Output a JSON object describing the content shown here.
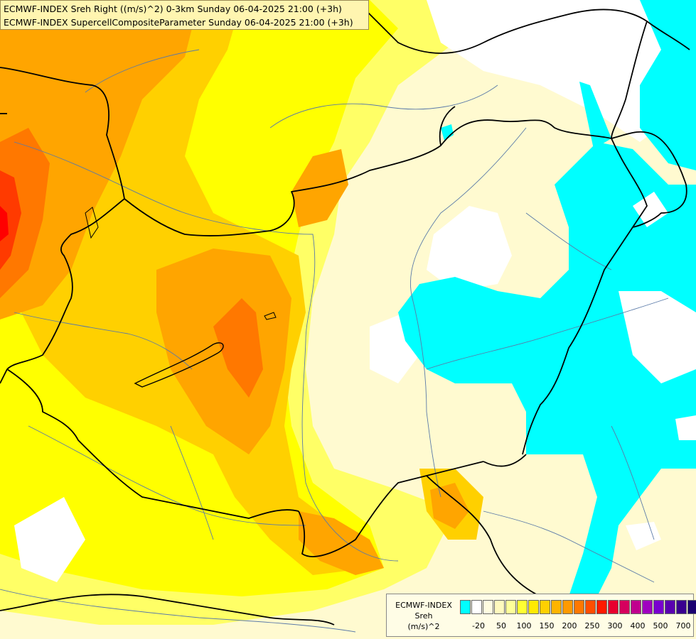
{
  "title": {
    "line1": "ECMWF-INDEX Sreh Right ((m/s)^2) 0-3km Sunday 06-04-2025 21:00 (+3h)",
    "line2": "ECMWF-INDEX SupercellCompositeParameter Sunday 06-04-2025 21:00 (+3h)"
  },
  "legend": {
    "model": "ECMWF-INDEX",
    "param": "Sreh",
    "unit": "(m/s)^2",
    "colors": [
      "#00ffff",
      "#ffffff",
      "#fffde0",
      "#fffabe",
      "#ffff99",
      "#ffff33",
      "#ffea00",
      "#ffd000",
      "#ffb400",
      "#ff9a00",
      "#ff7800",
      "#ff4e00",
      "#ff1a00",
      "#e8002e",
      "#d6005e",
      "#c0008e",
      "#a000c0",
      "#7a00d0",
      "#5a00b0",
      "#3a0090",
      "#1a0070"
    ],
    "ticks": [
      "-20",
      "50",
      "100",
      "150",
      "200",
      "250",
      "300",
      "400",
      "500",
      "700"
    ]
  },
  "colors": {
    "cyan": "#00ffff",
    "white": "#ffffff",
    "pale": "#fffad0",
    "lightyellow": "#ffff99",
    "yellow": "#ffff00",
    "gold": "#ffd000",
    "orange": "#ffa500",
    "darkorange": "#ff7800",
    "red": "#ff2000",
    "border": "#000000",
    "river": "#5a7aa8"
  }
}
